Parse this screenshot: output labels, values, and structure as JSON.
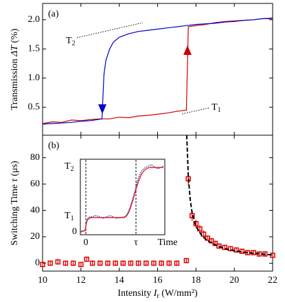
{
  "chart_data": [
    {
      "type": "line",
      "label": "(a)",
      "y_label": [
        "Transmission ",
        "ΔT",
        " (%)"
      ],
      "xlim": [
        10,
        22
      ],
      "xticks": [
        10,
        12,
        14,
        16,
        18,
        20,
        22
      ],
      "ylim": [
        0.02,
        2.28
      ],
      "yticks": [
        0.5,
        {
          "value": 1.0,
          "label": "1.0"
        },
        1.5,
        {
          "value": 2.0,
          "label": "2.0"
        }
      ],
      "annotations": [
        {
          "text": "T",
          "sub": "2"
        },
        {
          "text": "T",
          "sub": "1"
        }
      ],
      "series": [
        {
          "color": "#cc0000",
          "x": [
            10,
            10.5,
            11,
            11.5,
            12,
            12.5,
            13,
            13.5,
            14,
            14.5,
            15,
            15.5,
            16,
            16.5,
            17,
            17.5,
            17.6,
            18,
            18.5,
            19,
            19.5,
            20,
            20.5,
            21,
            21.5,
            22
          ],
          "values": [
            0.22,
            0.25,
            0.24,
            0.28,
            0.27,
            0.29,
            0.3,
            0.3,
            0.33,
            0.32,
            0.35,
            0.36,
            0.38,
            0.4,
            0.43,
            0.45,
            1.88,
            1.9,
            1.92,
            1.95,
            1.97,
            1.98,
            1.99,
            2.0,
            2.02,
            2.02
          ]
        },
        {
          "color": "#0000cc",
          "x": [
            22,
            21.5,
            21,
            20.5,
            20,
            19.5,
            19,
            18.5,
            18,
            17.5,
            17,
            16.5,
            16,
            15.5,
            15,
            14.5,
            14,
            13.7,
            13.5,
            13.3,
            13.2,
            13.1,
            12.5,
            12,
            11.5,
            11,
            10.5,
            10
          ],
          "values": [
            2.03,
            2.02,
            2.0,
            1.99,
            1.97,
            1.96,
            1.94,
            1.93,
            1.92,
            1.9,
            1.88,
            1.86,
            1.84,
            1.82,
            1.8,
            1.76,
            1.7,
            1.62,
            1.5,
            1.3,
            1.05,
            0.3,
            0.27,
            0.26,
            0.24,
            0.23,
            0.22,
            0.21
          ]
        }
      ]
    },
    {
      "type": "scatter",
      "label": "(b)",
      "y_label": [
        "Switching Time ",
        "τ",
        " (μs)"
      ],
      "x_label": [
        "Intensity ",
        "I",
        "r",
        " (W/mm²)"
      ],
      "xlim": [
        10,
        22
      ],
      "xticks": [
        10,
        12,
        14,
        16,
        18,
        20,
        22
      ],
      "ylim": [
        -6,
        97
      ],
      "yticks": [
        0,
        20,
        40,
        60,
        80
      ],
      "series": [
        {
          "color": "#dd0000",
          "x": [
            10,
            10.4,
            10.8,
            11.2,
            11.6,
            12,
            12.3,
            12.6,
            13,
            13.4,
            13.8,
            14.2,
            14.6,
            15,
            15.4,
            15.8,
            16.2,
            16.6,
            17,
            17.5,
            17.6,
            17.8,
            18,
            18.2,
            18.4,
            18.6,
            18.8,
            19,
            19.2,
            19.5,
            19.8,
            20.1,
            20.4,
            20.7,
            21,
            21.3,
            21.6,
            22
          ],
          "values": [
            -1,
            0,
            1,
            0,
            0,
            -1,
            3,
            0,
            0,
            0,
            0,
            0,
            0,
            0,
            0,
            0,
            0,
            0,
            0,
            2,
            64,
            36,
            30,
            26,
            22,
            19,
            17,
            15,
            13,
            12,
            11,
            10,
            9,
            8,
            8,
            7,
            7,
            6
          ],
          "yerr": [
            2,
            2,
            2,
            2,
            2,
            2,
            2,
            2,
            2,
            2,
            2,
            2,
            2,
            2,
            2,
            2,
            2,
            2,
            2,
            2,
            5,
            4,
            3,
            3,
            3,
            2,
            2,
            2,
            2,
            2,
            2,
            2,
            2,
            2,
            2,
            2,
            2,
            2
          ]
        },
        {
          "color": "#000000",
          "style": "dashed",
          "x": [
            17.52,
            17.55,
            17.6,
            17.7,
            17.8,
            18,
            18.3,
            18.6,
            19,
            19.5,
            20,
            20.5,
            21,
            21.5,
            22
          ],
          "values": [
            97,
            85,
            66,
            48,
            38,
            28,
            21,
            17,
            14,
            11,
            9.5,
            8.3,
            7.5,
            6.8,
            6.2
          ]
        }
      ],
      "inset": {
        "y_labels": [
          {
            "text": "T",
            "sub": "2"
          },
          {
            "text": "T",
            "sub": "1"
          },
          "0"
        ],
        "x_labels": [
          "0",
          "τ",
          "Time"
        ]
      }
    }
  ]
}
